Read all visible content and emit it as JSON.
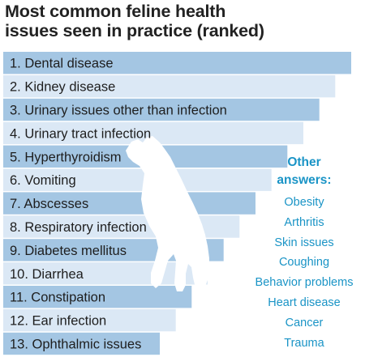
{
  "title_lines": [
    "Most common feline health",
    "issues seen in practice (ranked)"
  ],
  "colors": {
    "bar_dark": "#a4c6e3",
    "bar_light": "#dbe8f5",
    "bar_text": "#1e1e1e",
    "accent": "#1a94c6",
    "silhouette": "#ffffff"
  },
  "chart_data": {
    "type": "bar",
    "orientation": "horizontal",
    "title": "Most common feline health issues seen in practice (ranked)",
    "categories": [
      "1. Dental disease",
      "2. Kidney disease",
      "3. Urinary issues other than infection",
      "4. Urinary tract infection",
      "5. Hyperthyroidism",
      "6. Vomiting",
      "7. Abscesses",
      "8. Respiratory infection",
      "9. Diabetes mellitus",
      "10. Diarrhea",
      "11. Constipation",
      "12. Ear infection",
      "13. Ophthalmic issues"
    ],
    "values": [
      13,
      12,
      11,
      10,
      9,
      8,
      7,
      6,
      5,
      4,
      3,
      2,
      1
    ],
    "xlabel": "",
    "ylabel": "",
    "grid": false,
    "legend": "none"
  },
  "other_answers": {
    "heading_line1": "Other",
    "heading_line2": "answers:",
    "items": [
      "Obesity",
      "Arthritis",
      "Skin issues",
      "Coughing",
      "Behavior problems",
      "Heart disease",
      "Cancer",
      "Trauma"
    ]
  },
  "icons": {
    "background_figure": "cat-silhouette-icon"
  }
}
